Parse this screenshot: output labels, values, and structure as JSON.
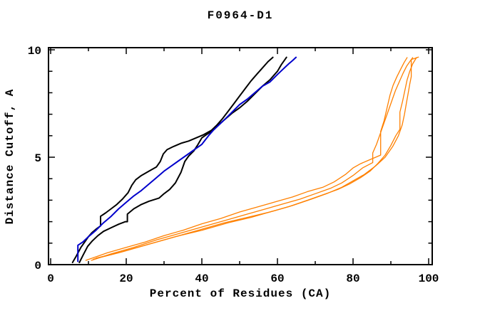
{
  "page": {
    "background": "#ffffff"
  },
  "chart_data": {
    "type": "line",
    "title": "F0964-D1",
    "xlabel": "Percent of Residues (CA)",
    "ylabel": "Distance Cutoff, A",
    "xlim": [
      0,
      100
    ],
    "ylim": [
      0,
      10
    ],
    "x_major_ticks": [
      0,
      20,
      40,
      60,
      80,
      100
    ],
    "x_minor_ticks": [
      10,
      30,
      50,
      70,
      90
    ],
    "y_major_ticks": [
      0,
      5,
      10
    ],
    "y_minor_ticks": [
      1,
      2,
      3,
      4,
      6,
      7,
      8,
      9
    ],
    "grid": false,
    "legend_position": "none",
    "frame": "box-with-inward-ticks",
    "axis_color": "#000000",
    "series": [
      {
        "name": "black-curve-1",
        "color": "#000000",
        "width": 2,
        "points": [
          [
            5.8,
            0.1
          ],
          [
            6.8,
            0.4
          ],
          [
            8,
            0.8
          ],
          [
            9,
            1.05
          ],
          [
            10,
            1.3
          ],
          [
            11,
            1.5
          ],
          [
            12,
            1.65
          ],
          [
            13.2,
            1.8
          ],
          [
            13.2,
            2.25
          ],
          [
            14.5,
            2.4
          ],
          [
            16,
            2.6
          ],
          [
            17.5,
            2.8
          ],
          [
            19,
            3.05
          ],
          [
            20.5,
            3.35
          ],
          [
            21.5,
            3.7
          ],
          [
            22.5,
            3.95
          ],
          [
            24,
            4.15
          ],
          [
            26,
            4.35
          ],
          [
            28,
            4.55
          ],
          [
            29,
            4.8
          ],
          [
            29.8,
            5.15
          ],
          [
            30.8,
            5.35
          ],
          [
            32.5,
            5.5
          ],
          [
            34.5,
            5.65
          ],
          [
            36.5,
            5.75
          ],
          [
            38.5,
            5.9
          ],
          [
            40.5,
            6.05
          ],
          [
            42.5,
            6.25
          ],
          [
            44,
            6.5
          ],
          [
            45.5,
            6.8
          ],
          [
            47,
            7.15
          ],
          [
            48.5,
            7.5
          ],
          [
            50,
            7.85
          ],
          [
            51.5,
            8.2
          ],
          [
            53,
            8.55
          ],
          [
            54.5,
            8.85
          ],
          [
            56,
            9.15
          ],
          [
            57.5,
            9.45
          ],
          [
            58.8,
            9.65
          ]
        ]
      },
      {
        "name": "black-curve-2",
        "color": "#000000",
        "width": 2,
        "points": [
          [
            7.6,
            0.1
          ],
          [
            8.6,
            0.45
          ],
          [
            9.8,
            0.85
          ],
          [
            11,
            1.1
          ],
          [
            12.5,
            1.35
          ],
          [
            14,
            1.55
          ],
          [
            16,
            1.72
          ],
          [
            18,
            1.88
          ],
          [
            19.8,
            2.0
          ],
          [
            20.3,
            2.0
          ],
          [
            20.3,
            2.35
          ],
          [
            22,
            2.6
          ],
          [
            24,
            2.8
          ],
          [
            26,
            2.95
          ],
          [
            28.7,
            3.1
          ],
          [
            30,
            3.3
          ],
          [
            31.5,
            3.5
          ],
          [
            33,
            3.8
          ],
          [
            34.5,
            4.3
          ],
          [
            35.5,
            4.8
          ],
          [
            36.5,
            5.05
          ],
          [
            37.9,
            5.3
          ],
          [
            39,
            5.6
          ],
          [
            40,
            5.9
          ],
          [
            41.2,
            6.05
          ],
          [
            42.5,
            6.2
          ],
          [
            44,
            6.45
          ],
          [
            46,
            6.75
          ],
          [
            48,
            7.05
          ],
          [
            50,
            7.3
          ],
          [
            52,
            7.6
          ],
          [
            54,
            7.95
          ],
          [
            56,
            8.3
          ],
          [
            58,
            8.6
          ],
          [
            59,
            8.8
          ],
          [
            60,
            9.0
          ],
          [
            61,
            9.3
          ],
          [
            62,
            9.55
          ],
          [
            62.4,
            9.65
          ]
        ]
      },
      {
        "name": "blue-curve",
        "color": "#0000cc",
        "width": 2,
        "points": [
          [
            7.2,
            0.15
          ],
          [
            7.2,
            0.9
          ],
          [
            8.5,
            1.05
          ],
          [
            10,
            1.3
          ],
          [
            12,
            1.6
          ],
          [
            14,
            1.95
          ],
          [
            16,
            2.25
          ],
          [
            18,
            2.6
          ],
          [
            20,
            2.9
          ],
          [
            22,
            3.2
          ],
          [
            24,
            3.45
          ],
          [
            26,
            3.75
          ],
          [
            28,
            4.05
          ],
          [
            30,
            4.35
          ],
          [
            32,
            4.6
          ],
          [
            34,
            4.85
          ],
          [
            36,
            5.1
          ],
          [
            38,
            5.35
          ],
          [
            40,
            5.6
          ],
          [
            42,
            6.05
          ],
          [
            43,
            6.25
          ],
          [
            44.5,
            6.5
          ],
          [
            46,
            6.75
          ],
          [
            48,
            7.1
          ],
          [
            50,
            7.45
          ],
          [
            52,
            7.7
          ],
          [
            54,
            8.0
          ],
          [
            56,
            8.3
          ],
          [
            58,
            8.5
          ],
          [
            60,
            8.85
          ],
          [
            61.5,
            9.1
          ],
          [
            63,
            9.35
          ],
          [
            64,
            9.5
          ],
          [
            64.9,
            9.65
          ]
        ]
      },
      {
        "name": "orange-curve-1",
        "color": "#ff8000",
        "width": 1.3,
        "points": [
          [
            9.3,
            0.2
          ],
          [
            15,
            0.55
          ],
          [
            20,
            0.8
          ],
          [
            25,
            1.05
          ],
          [
            30,
            1.35
          ],
          [
            35,
            1.6
          ],
          [
            40,
            1.9
          ],
          [
            45,
            2.15
          ],
          [
            50,
            2.45
          ],
          [
            55,
            2.7
          ],
          [
            60,
            2.95
          ],
          [
            64,
            3.15
          ],
          [
            68,
            3.4
          ],
          [
            72,
            3.6
          ],
          [
            75,
            3.85
          ],
          [
            78,
            4.2
          ],
          [
            80,
            4.5
          ],
          [
            82,
            4.7
          ],
          [
            84,
            4.85
          ],
          [
            86,
            5.0
          ],
          [
            87.3,
            5.1
          ],
          [
            87.3,
            6.2
          ],
          [
            88.2,
            6.7
          ],
          [
            89,
            7.3
          ],
          [
            89.8,
            7.9
          ],
          [
            90.6,
            8.35
          ],
          [
            91.6,
            8.75
          ],
          [
            92.6,
            9.1
          ],
          [
            93.5,
            9.4
          ],
          [
            94.3,
            9.64
          ]
        ]
      },
      {
        "name": "orange-curve-2",
        "color": "#ff8000",
        "width": 1.3,
        "points": [
          [
            10.8,
            0.2
          ],
          [
            16,
            0.5
          ],
          [
            22,
            0.8
          ],
          [
            28,
            1.15
          ],
          [
            34,
            1.45
          ],
          [
            40,
            1.75
          ],
          [
            46,
            2.05
          ],
          [
            52,
            2.35
          ],
          [
            57,
            2.6
          ],
          [
            62,
            2.85
          ],
          [
            66,
            3.05
          ],
          [
            70,
            3.3
          ],
          [
            74,
            3.55
          ],
          [
            77,
            3.8
          ],
          [
            80,
            4.15
          ],
          [
            82.5,
            4.5
          ],
          [
            85.2,
            4.75
          ],
          [
            85.2,
            5.2
          ],
          [
            86.2,
            5.6
          ],
          [
            87.2,
            6.1
          ],
          [
            88.2,
            6.6
          ],
          [
            89.2,
            7.1
          ],
          [
            90.2,
            7.6
          ],
          [
            91.2,
            8.1
          ],
          [
            92.2,
            8.5
          ],
          [
            93.2,
            8.9
          ],
          [
            94.2,
            9.25
          ],
          [
            95.2,
            9.5
          ],
          [
            95.8,
            9.64
          ]
        ]
      },
      {
        "name": "orange-curve-3",
        "color": "#ff8000",
        "width": 1.3,
        "points": [
          [
            11.3,
            0.25
          ],
          [
            18,
            0.55
          ],
          [
            25,
            0.9
          ],
          [
            32,
            1.25
          ],
          [
            39,
            1.6
          ],
          [
            46,
            1.95
          ],
          [
            52,
            2.2
          ],
          [
            58,
            2.45
          ],
          [
            63,
            2.7
          ],
          [
            68,
            3.0
          ],
          [
            72,
            3.25
          ],
          [
            76,
            3.5
          ],
          [
            79,
            3.75
          ],
          [
            82,
            4.05
          ],
          [
            84.5,
            4.35
          ],
          [
            86.5,
            4.7
          ],
          [
            88.5,
            5.1
          ],
          [
            90,
            5.55
          ],
          [
            91.3,
            6.0
          ],
          [
            92.4,
            6.3
          ],
          [
            92.4,
            7.1
          ],
          [
            93.1,
            7.6
          ],
          [
            93.7,
            8.1
          ],
          [
            94.3,
            8.6
          ],
          [
            95,
            9.0
          ],
          [
            95.8,
            9.35
          ],
          [
            96.8,
            9.64
          ]
        ]
      },
      {
        "name": "orange-curve-4",
        "color": "#ff8000",
        "width": 1.3,
        "points": [
          [
            12,
            0.3
          ],
          [
            19,
            0.6
          ],
          [
            26,
            0.95
          ],
          [
            33,
            1.3
          ],
          [
            40,
            1.6
          ],
          [
            47,
            1.95
          ],
          [
            53,
            2.2
          ],
          [
            59,
            2.5
          ],
          [
            64,
            2.75
          ],
          [
            69,
            3.05
          ],
          [
            73,
            3.3
          ],
          [
            77,
            3.6
          ],
          [
            80,
            3.9
          ],
          [
            83,
            4.2
          ],
          [
            86,
            4.6
          ],
          [
            88.5,
            5.0
          ],
          [
            90.5,
            5.5
          ],
          [
            92,
            6.0
          ],
          [
            93,
            6.5
          ],
          [
            93.6,
            7.0
          ],
          [
            94.1,
            7.5
          ],
          [
            94.6,
            8.0
          ],
          [
            95,
            8.4
          ],
          [
            95.4,
            8.75
          ],
          [
            95.4,
            9.55
          ],
          [
            96.3,
            9.6
          ],
          [
            97.3,
            9.66
          ]
        ]
      }
    ]
  }
}
